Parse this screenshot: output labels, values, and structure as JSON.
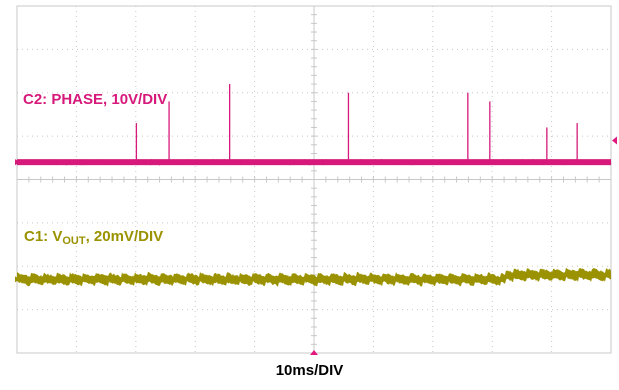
{
  "colors": {
    "background": "#ffffff",
    "grid": "#c8c8c8",
    "phase_trace": "#d6197a",
    "vout_trace": "#9a9200",
    "marker": "#e0187f"
  },
  "labels": {
    "c2": "C2: PHASE, 10V/DIV",
    "c1_prefix": "C1: V",
    "c1_sub": "OUT",
    "c1_suffix": ", 20mV/DIV",
    "time": "10ms/DIV"
  },
  "chart_data": {
    "type": "line",
    "title": "",
    "xlabel": "10ms/DIV",
    "x_divisions": 10,
    "y_divisions": 8,
    "grid": true,
    "x_unit": "ms",
    "xlim": [
      0,
      100
    ],
    "series": [
      {
        "name": "C2: PHASE, 10V/DIV",
        "scale": "10V/DIV",
        "baseline_div": 4.4,
        "spikes_ms": [
          {
            "t": 20.1,
            "height_div": 0.9
          },
          {
            "t": 25.6,
            "height_div": 1.4
          },
          {
            "t": 35.8,
            "height_div": 1.8
          },
          {
            "t": 55.8,
            "height_div": 1.6
          },
          {
            "t": 75.9,
            "height_div": 1.6
          },
          {
            "t": 79.6,
            "height_div": 1.4
          },
          {
            "t": 89.2,
            "height_div": 0.8
          },
          {
            "t": 94.3,
            "height_div": 0.9
          }
        ]
      },
      {
        "name": "C1: VOUT, 20mV/DIV",
        "scale": "20mV/DIV",
        "baseline_div": 1.7,
        "ripple_div": 0.15,
        "step": {
          "t": 82.2,
          "delta_div": 0.1
        }
      }
    ]
  }
}
